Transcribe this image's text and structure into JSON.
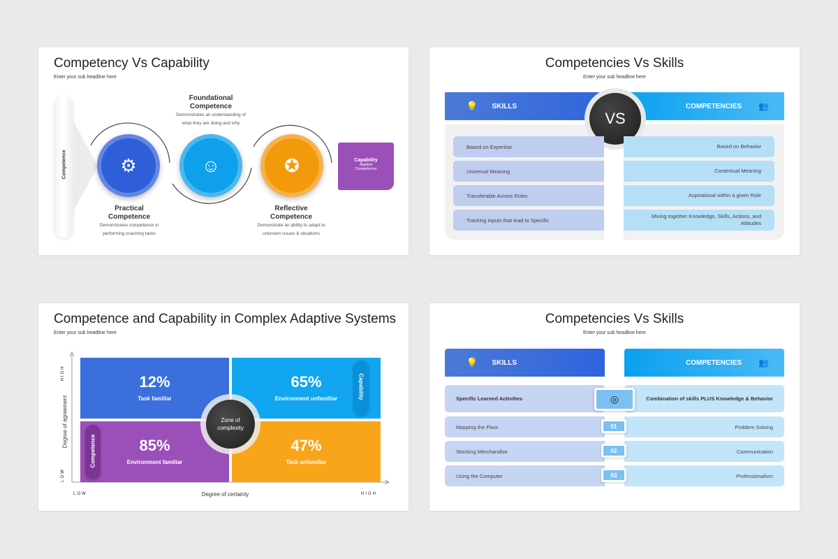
{
  "slide1": {
    "title": "Competency Vs Capability",
    "subtitle": "Enter your sub headline here",
    "competence_label": "Competence",
    "foundational": {
      "title1": "Foundational",
      "title2": "Competence",
      "desc1": "Demonstrates an understanding of",
      "desc2": "what they are doing and why"
    },
    "practical": {
      "title1": "Practical",
      "title2": "Competence",
      "desc1": "Demonstrates competence in",
      "desc2": "performing coaching tasks"
    },
    "reflective": {
      "title1": "Reflective",
      "title2": "Competence",
      "desc1": "Demonstrate an ability to adapt to",
      "desc2": "unknown issues & situations"
    },
    "capability": {
      "title": "Capability",
      "desc1": "Applied",
      "desc2": "Competence"
    },
    "colors": {
      "practical": "#2f5fd8",
      "foundational": "#0ea0ea",
      "reflective": "#f29a0c",
      "capability": "#9b4fb8"
    }
  },
  "slide2": {
    "title": "Competencies Vs Skills",
    "subtitle": "Enter your sub headline here",
    "left_header": "SKILLS",
    "right_header": "COMPETENCIES",
    "vs": "VS",
    "skills": [
      "Based on Expertise",
      "Universal Meaning",
      "Transferable Across Roles",
      "Tracking inputs that lead to Specific"
    ],
    "competencies": [
      "Based on Behavior",
      "Contextual Meaning",
      "Aspirational within a given Role",
      "Mixing together Knowledge, Skills, Actions, and Attitudes"
    ]
  },
  "slide3": {
    "title": "Competence and Capability in Complex Adaptive Systems",
    "subtitle": "Enter your sub headline here",
    "y_axis": "Degree of agreement",
    "x_axis": "Degree of certainty",
    "y_high": "HIGH",
    "y_low": "LOW",
    "x_low": "LOW",
    "x_high": "HIGH",
    "quadrants": [
      {
        "value": "12%",
        "label": "Task familiar",
        "color": "#3a6fdc"
      },
      {
        "value": "65%",
        "label": "Environment unfamiliar",
        "color": "#11a6ef"
      },
      {
        "value": "85%",
        "label": "Environment familiar",
        "color": "#9b4fb8"
      },
      {
        "value": "47%",
        "label": "Task unfamiliar",
        "color": "#f9a51a"
      }
    ],
    "center": "Zone of complexity",
    "capability_tag": "Capability",
    "competence_tag": "Competence"
  },
  "slide4": {
    "title": "Competencies Vs Skills",
    "subtitle": "Enter your sub headline here",
    "left_header": "SKILLS",
    "right_header": "COMPETENCIES",
    "top_left": "Specific Learned Activities",
    "top_right": "Combination of skills PLUS Knowledge & Behavior",
    "rows": [
      {
        "num": "01",
        "skill": "Mopping the Floor",
        "competency": "Problem Solving"
      },
      {
        "num": "02",
        "skill": "Stocking Merchandise",
        "competency": "Communication"
      },
      {
        "num": "03",
        "skill": "Using the Computer",
        "competency": "Professionalism"
      }
    ]
  }
}
